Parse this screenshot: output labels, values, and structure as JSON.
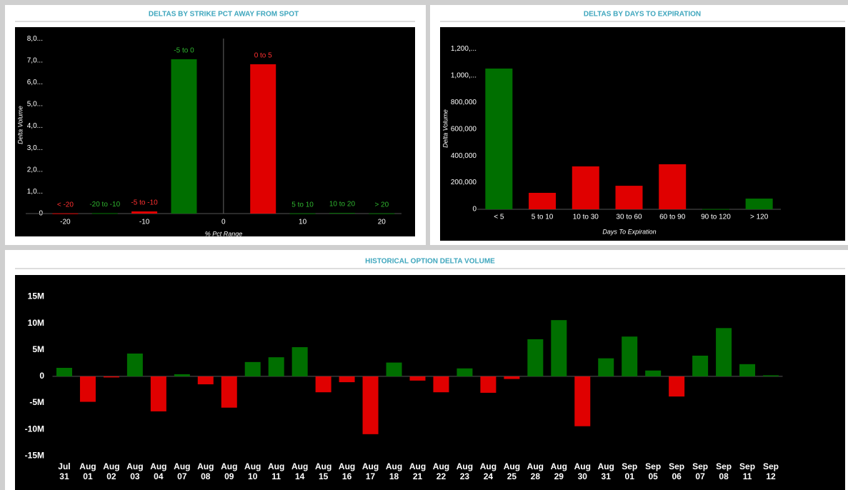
{
  "chart_data": [
    {
      "type": "bar",
      "title": "DELTAS BY STRIKE PCT AWAY FROM SPOT",
      "x_label": "% Pct Range",
      "y_label": "Delta Volume",
      "x": [
        -20,
        -15,
        -10,
        -5,
        5,
        10,
        15,
        20
      ],
      "bar_labels": [
        "< -20",
        "-20 to -10",
        "-5 to -10",
        "-5 to 0",
        "0 to 5",
        "5 to 10",
        "10 to 20",
        "> 20"
      ],
      "values": [
        10,
        20,
        100,
        7060,
        6830,
        10,
        30,
        10
      ],
      "colors": [
        "#e00000",
        "#006f00",
        "#e00000",
        "#006f00",
        "#e00000",
        "#006f00",
        "#006f00",
        "#006f00"
      ],
      "xlim": [
        -25,
        22.5
      ],
      "xticks": [
        -20,
        -10,
        0,
        10,
        20
      ],
      "ylim": [
        0,
        8200
      ],
      "yticks": [
        0,
        {
          "value": 1000,
          "label": "1,0..."
        },
        {
          "value": 2000,
          "label": "2,0..."
        },
        {
          "value": 3000,
          "label": "3,0..."
        },
        {
          "value": 4000,
          "label": "4,0..."
        },
        {
          "value": 5000,
          "label": "5,0..."
        },
        {
          "value": 6000,
          "label": "6,0..."
        },
        {
          "value": 7000,
          "label": "7,0..."
        },
        {
          "value": 8000,
          "label": "8,0..."
        }
      ]
    },
    {
      "type": "bar",
      "title": "DELTAS BY DAYS TO EXPIRATION",
      "x_label": "Days To Expiration",
      "y_label": "Delta Volume",
      "categories": [
        "< 5",
        "5 to 10",
        "10 to 30",
        "30 to 60",
        "60 to 90",
        "90 to 120",
        "> 120"
      ],
      "values": [
        1053000,
        123000,
        321000,
        176000,
        337000,
        2000,
        80000
      ],
      "colors": [
        "#006f00",
        "#e00000",
        "#e00000",
        "#e00000",
        "#e00000",
        "#006f00",
        "#006f00"
      ],
      "ylim": [
        0,
        1240000
      ],
      "yticks": [
        0,
        {
          "value": 200000,
          "label": "200,000"
        },
        {
          "value": 400000,
          "label": "400,000"
        },
        {
          "value": 600000,
          "label": "600,000"
        },
        {
          "value": 800000,
          "label": "800,000"
        },
        {
          "value": 1000000,
          "label": "1,000,..."
        },
        {
          "value": 1200000,
          "label": "1,200,..."
        }
      ]
    },
    {
      "type": "bar",
      "title": "HISTORICAL OPTION DELTA VOLUME",
      "categories": [
        [
          "Jul",
          "31"
        ],
        [
          "Aug",
          "01"
        ],
        [
          "Aug",
          "02"
        ],
        [
          "Aug",
          "03"
        ],
        [
          "Aug",
          "04"
        ],
        [
          "Aug",
          "07"
        ],
        [
          "Aug",
          "08"
        ],
        [
          "Aug",
          "09"
        ],
        [
          "Aug",
          "10"
        ],
        [
          "Aug",
          "11"
        ],
        [
          "Aug",
          "14"
        ],
        [
          "Aug",
          "15"
        ],
        [
          "Aug",
          "16"
        ],
        [
          "Aug",
          "17"
        ],
        [
          "Aug",
          "18"
        ],
        [
          "Aug",
          "21"
        ],
        [
          "Aug",
          "22"
        ],
        [
          "Aug",
          "23"
        ],
        [
          "Aug",
          "24"
        ],
        [
          "Aug",
          "25"
        ],
        [
          "Aug",
          "28"
        ],
        [
          "Aug",
          "29"
        ],
        [
          "Aug",
          "30"
        ],
        [
          "Aug",
          "31"
        ],
        [
          "Sep",
          "01"
        ],
        [
          "Sep",
          "05"
        ],
        [
          "Sep",
          "06"
        ],
        [
          "Sep",
          "07"
        ],
        [
          "Sep",
          "08"
        ],
        [
          "Sep",
          "11"
        ],
        [
          "Sep",
          "12"
        ]
      ],
      "values": [
        1600000,
        -4800000,
        -200000,
        4300000,
        -6600000,
        400000,
        -1500000,
        -5900000,
        2700000,
        3600000,
        5500000,
        -3000000,
        -1100000,
        -10900000,
        2600000,
        -800000,
        -3000000,
        1500000,
        -3100000,
        -500000,
        7000000,
        10600000,
        -9400000,
        3400000,
        7500000,
        1100000,
        -3800000,
        3900000,
        9100000,
        2300000,
        200000
      ],
      "positive_color": "#006f00",
      "negative_color": "#e00000",
      "ylim": [
        -15900000,
        18700000
      ],
      "yticks": [
        {
          "value": -15000000,
          "label": "-15M"
        },
        {
          "value": -10000000,
          "label": "-10M"
        },
        {
          "value": -5000000,
          "label": "-5M"
        },
        0,
        {
          "value": 5000000,
          "label": "5M"
        },
        {
          "value": 10000000,
          "label": "10M"
        },
        {
          "value": 15000000,
          "label": "15M"
        }
      ]
    }
  ]
}
